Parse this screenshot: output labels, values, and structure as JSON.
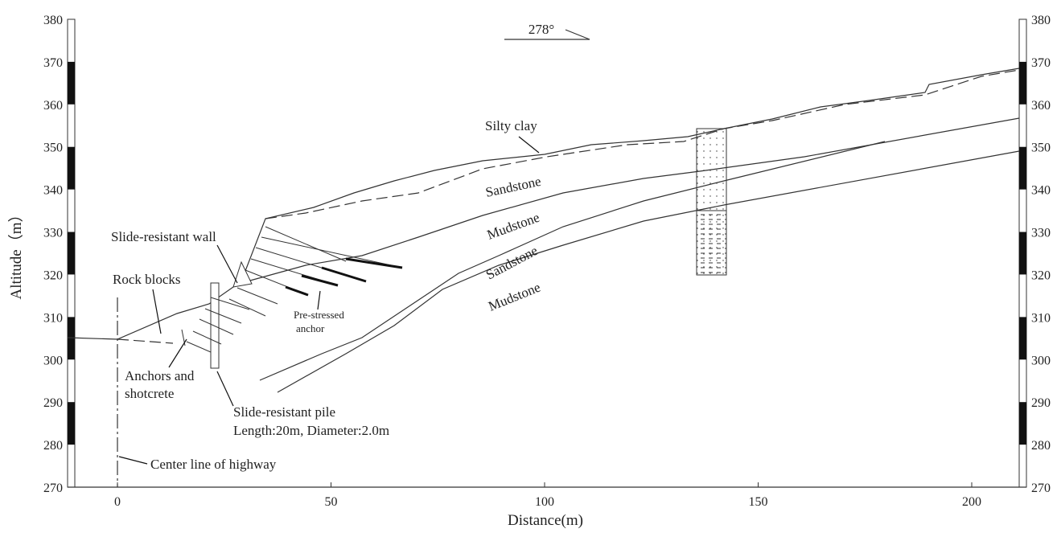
{
  "diagram": {
    "x_axis": {
      "label": "Distance(m)",
      "ticks": [
        0,
        50,
        100,
        150,
        200
      ]
    },
    "y_axis": {
      "label": "Altitude（m）",
      "ticks": [
        270,
        280,
        290,
        300,
        310,
        320,
        330,
        340,
        350,
        360,
        370,
        380
      ]
    },
    "orientation": "278°",
    "labels": {
      "silty_clay": "Silty clay",
      "sandstone_1": "Sandstone",
      "mudstone_1": "Mudstone",
      "sandstone_2": "Sandstone",
      "mudstone_2": "Mudstone",
      "slide_wall": "Slide-resistant wall",
      "rock_blocks": "Rock blocks",
      "anchor_1": "Pre-stressed",
      "anchor_2": "anchor",
      "anchors_shotcrete_1": "Anchors and",
      "anchors_shotcrete_2": "shotcrete",
      "pile_1": "Slide-resistant pile",
      "pile_2": "Length:20m, Diameter:2.0m",
      "center_line": "Center line of highway"
    }
  }
}
